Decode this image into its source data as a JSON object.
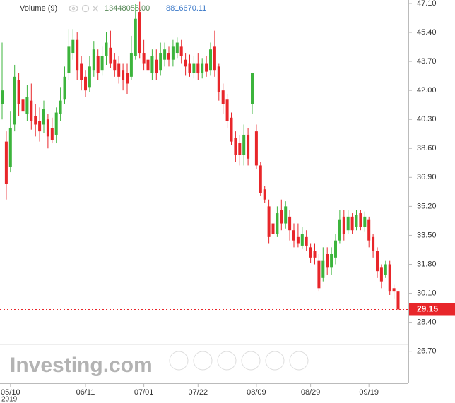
{
  "chart_data": {
    "type": "candlestick",
    "volume_label": "Volume (9)",
    "volume_values": [
      "13448055.00",
      "8816670.11"
    ],
    "watermark": "Investing.com",
    "year_label": "2019",
    "up_color": "#3cb43c",
    "down_color": "#e8262a",
    "grid": false,
    "categories": [
      null,
      null,
      "05/10",
      null,
      null,
      null,
      null,
      null,
      null,
      null,
      null,
      null,
      null,
      null,
      null,
      null,
      null,
      null,
      null,
      null,
      "06/11",
      null,
      null,
      null,
      null,
      null,
      null,
      null,
      null,
      null,
      null,
      null,
      null,
      null,
      "07/01",
      null,
      null,
      null,
      null,
      null,
      null,
      null,
      null,
      null,
      null,
      null,
      null,
      "07/22",
      null,
      null,
      null,
      null,
      null,
      null,
      null,
      null,
      null,
      null,
      null,
      null,
      null,
      "08/09",
      null,
      null,
      null,
      null,
      null,
      null,
      null,
      null,
      null,
      null,
      null,
      null,
      "08/29",
      null,
      null,
      null,
      null,
      null,
      null,
      null,
      null,
      null,
      null,
      null,
      null,
      null,
      "09/19",
      null,
      null,
      null,
      null,
      null,
      null,
      null
    ],
    "open": [
      41.2,
      39.0,
      37.5,
      40.0,
      42.6,
      41.5,
      40.6,
      41.4,
      40.5,
      40.2,
      40.0,
      40.3,
      39.8,
      39.4,
      40.6,
      41.5,
      43.0,
      44.2,
      45.0,
      43.6,
      42.8,
      42.2,
      43.2,
      44.0,
      43.2,
      44.0,
      44.5,
      43.8,
      43.6,
      43.2,
      43.0,
      42.8,
      44.0,
      46.6,
      44.2,
      43.8,
      43.0,
      43.8,
      43.2,
      43.8,
      44.2,
      43.8,
      44.2,
      44.6,
      43.8,
      43.6,
      43.0,
      43.6,
      43.0,
      43.6,
      43.2,
      44.6,
      43.4,
      42.0,
      41.5,
      40.4,
      39.2,
      38.9,
      38.2,
      39.4,
      41.2,
      39.6,
      37.6,
      36.2,
      35.2,
      34.2,
      33.6,
      35.0,
      34.2,
      34.6,
      33.8,
      33.4,
      32.9,
      33.4,
      32.8,
      32.6,
      32.0,
      31.0,
      32.4,
      31.6,
      32.2,
      33.2,
      34.6,
      33.8,
      34.6,
      34.0,
      34.8,
      34.0,
      34.4,
      33.4,
      32.6,
      31.6,
      31.2,
      31.8,
      30.4,
      30.2
    ],
    "high": [
      44.8,
      39.6,
      40.8,
      43.5,
      43.0,
      42.0,
      42.3,
      42.4,
      41.2,
      41.0,
      41.4,
      40.6,
      40.4,
      41.0,
      42.2,
      43.4,
      45.6,
      45.6,
      45.4,
      44.0,
      43.2,
      44.0,
      44.9,
      44.4,
      44.6,
      45.4,
      45.5,
      44.2,
      44.0,
      43.6,
      43.6,
      45.2,
      47.1,
      47.2,
      45.0,
      44.6,
      44.4,
      44.4,
      44.8,
      44.8,
      44.6,
      45.0,
      45.1,
      45.0,
      44.2,
      44.1,
      44.0,
      44.2,
      43.9,
      44.0,
      44.8,
      45.5,
      43.6,
      42.4,
      41.8,
      40.7,
      39.6,
      39.4,
      40.0,
      39.8,
      43.0,
      40.0,
      37.8,
      36.4,
      35.6,
      35.0,
      35.2,
      35.6,
      35.5,
      35.0,
      34.2,
      34.2,
      34.0,
      33.8,
      33.0,
      33.0,
      32.4,
      32.8,
      32.8,
      32.8,
      33.6,
      35.0,
      35.0,
      35.0,
      34.8,
      35.0,
      35.0,
      34.9,
      34.6,
      33.6,
      32.8,
      31.8,
      32.0,
      32.0,
      30.6,
      30.3
    ],
    "low": [
      40.3,
      35.6,
      37.2,
      39.6,
      40.5,
      38.9,
      40.2,
      39.7,
      39.3,
      39.0,
      39.5,
      38.6,
      38.9,
      38.9,
      40.2,
      41.2,
      42.6,
      43.8,
      42.6,
      42.0,
      41.6,
      41.9,
      42.8,
      42.6,
      42.9,
      43.5,
      43.3,
      42.8,
      42.4,
      42.0,
      41.8,
      42.6,
      43.8,
      43.9,
      43.2,
      42.8,
      42.6,
      42.6,
      42.9,
      43.4,
      43.4,
      43.4,
      43.9,
      43.6,
      42.9,
      42.8,
      42.7,
      42.6,
      42.7,
      42.8,
      42.9,
      42.8,
      41.4,
      40.6,
      39.8,
      38.8,
      37.8,
      37.6,
      37.6,
      37.6,
      40.6,
      37.4,
      35.8,
      35.4,
      33.0,
      32.8,
      33.4,
      33.8,
      33.9,
      33.2,
      32.8,
      32.8,
      32.7,
      32.6,
      31.9,
      31.8,
      30.2,
      30.8,
      31.2,
      31.2,
      31.8,
      33.0,
      33.2,
      33.6,
      33.6,
      33.8,
      33.8,
      33.7,
      32.8,
      32.2,
      31.0,
      30.4,
      31.0,
      30.0,
      29.8,
      28.6
    ],
    "close": [
      42.0,
      36.5,
      39.8,
      42.8,
      41.2,
      40.8,
      41.6,
      40.2,
      40.0,
      39.6,
      40.9,
      39.3,
      39.1,
      40.7,
      41.4,
      42.8,
      44.6,
      45.0,
      43.2,
      42.6,
      42.0,
      43.4,
      44.4,
      43.0,
      44.0,
      44.8,
      43.6,
      43.2,
      42.8,
      42.6,
      42.4,
      44.2,
      46.2,
      44.2,
      43.6,
      43.2,
      44.0,
      43.0,
      44.2,
      44.4,
      43.8,
      44.6,
      44.8,
      44.0,
      43.4,
      43.0,
      43.6,
      43.0,
      43.6,
      43.1,
      44.4,
      43.2,
      41.9,
      41.2,
      40.2,
      39.0,
      38.2,
      38.2,
      39.4,
      38.0,
      43.0,
      37.6,
      36.0,
      35.6,
      33.4,
      33.6,
      34.8,
      34.2,
      35.2,
      33.8,
      33.2,
      33.0,
      33.6,
      32.9,
      32.2,
      32.2,
      30.4,
      32.0,
      31.6,
      32.4,
      33.2,
      34.4,
      33.6,
      34.6,
      33.8,
      34.7,
      34.0,
      34.6,
      33.2,
      32.6,
      31.4,
      30.8,
      31.8,
      30.2,
      30.2,
      29.15
    ],
    "ylim": [
      26.0,
      47.3
    ],
    "yticks": [
      {
        "value": 47.1,
        "label": "47.10"
      },
      {
        "value": 45.4,
        "label": "45.40"
      },
      {
        "value": 43.7,
        "label": "43.70"
      },
      {
        "value": 42,
        "label": "42.00"
      },
      {
        "value": 40.3,
        "label": "40.30"
      },
      {
        "value": 38.6,
        "label": "38.60"
      },
      {
        "value": 36.9,
        "label": "36.90"
      },
      {
        "value": 35.2,
        "label": "35.20"
      },
      {
        "value": 33.5,
        "label": "33.50"
      },
      {
        "value": 31.8,
        "label": "31.80"
      },
      {
        "value": 30.1,
        "label": "30.10"
      },
      {
        "value": 28.4,
        "label": "28.40"
      },
      {
        "value": 26.7,
        "label": "26.70"
      }
    ]
  }
}
